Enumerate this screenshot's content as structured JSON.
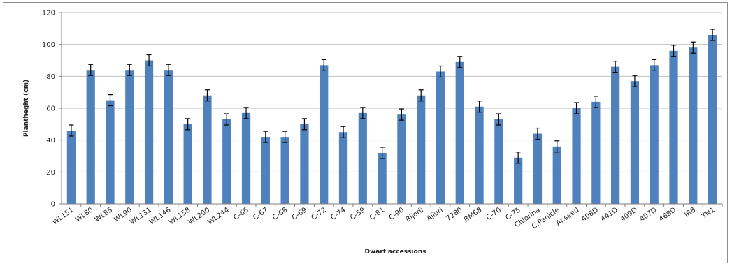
{
  "chart_data": {
    "type": "bar",
    "title": "",
    "xlabel": "Dwarf accessions",
    "ylabel": "Plantheght (cm)",
    "ylim": [
      0,
      120
    ],
    "yticks": [
      0,
      20,
      40,
      60,
      80,
      100,
      120
    ],
    "grid": true,
    "legend": "none",
    "bar_color": "#4f81bd",
    "categories": [
      "WL151",
      "WL80",
      "WL85",
      "WL90",
      "WL131",
      "WL146",
      "WL158",
      "WL200",
      "WL244",
      "C-66",
      "C-67",
      "C-68",
      "C-69",
      "C-72",
      "C-74",
      "C-59",
      "C-81",
      "C-90",
      "Bijorli",
      "Ajiuri",
      "7280",
      "BM68",
      "C-70",
      "C-75",
      "Chlorina",
      "C.Panicle",
      "Ar.seed",
      "408D",
      "441D",
      "409D",
      "407D",
      "468D",
      "IR8",
      "TN1"
    ],
    "series": [
      {
        "values": [
          46,
          84,
          65,
          84,
          90,
          84,
          50,
          68,
          53,
          57,
          42,
          42,
          50,
          87,
          45,
          57,
          32,
          56,
          68,
          83,
          89,
          61,
          53,
          29,
          44,
          36,
          60,
          64,
          86,
          77,
          87,
          96,
          98,
          106
        ],
        "errors": [
          3.5,
          3.5,
          3.5,
          3.5,
          3.5,
          3.5,
          3.5,
          3.5,
          3.5,
          3.5,
          3.5,
          3.5,
          3.5,
          3.5,
          3.5,
          3.5,
          3.5,
          3.5,
          3.5,
          3.5,
          3.5,
          3.5,
          3.5,
          3.5,
          3.5,
          3.5,
          3.5,
          3.5,
          3.5,
          3.5,
          3.5,
          3.5,
          3.5,
          3.5
        ]
      }
    ]
  }
}
